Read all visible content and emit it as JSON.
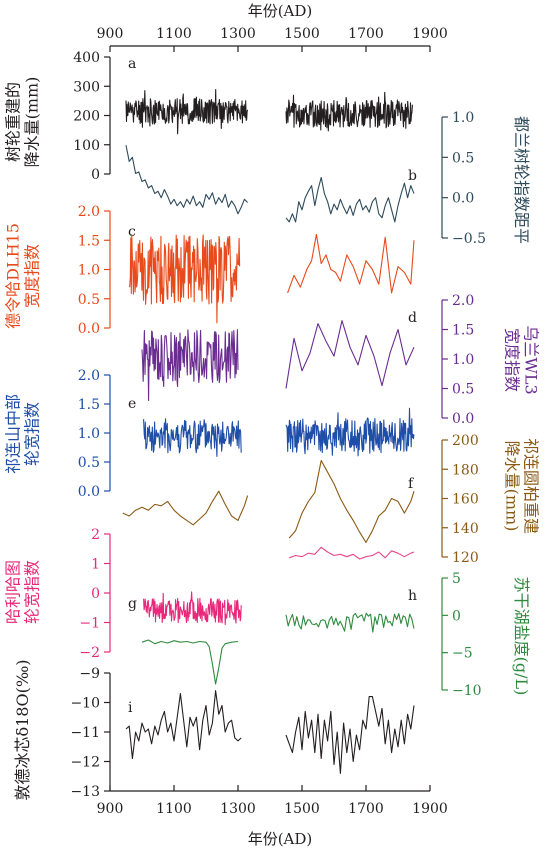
{
  "x_axis": {
    "title": "年份(AD)",
    "range": [
      900,
      1900
    ],
    "ticks": [
      900,
      1100,
      1300,
      1500,
      1700,
      1900
    ],
    "tick_labels": [
      "900",
      "1100",
      "1300",
      "1500",
      "1700",
      "1900"
    ]
  },
  "chart_data": [
    {
      "type": "line",
      "panel_label": "a",
      "ylabel": "树轮重建的 降水量(mm)",
      "ylabel_lines": [
        "树轮重建的",
        "降水量(mm)"
      ],
      "axis_side": "left",
      "color": "#231f20",
      "ylim": [
        0,
        400
      ],
      "yticks": [
        0,
        100,
        200,
        300,
        400
      ],
      "ytick_labels": [
        "0",
        "100",
        "200",
        "300",
        "400"
      ],
      "series": [
        {
          "x": [
            950,
            1330
          ],
          "base": 215,
          "amp": 45,
          "n": 260,
          "seed": 11
        },
        {
          "x": [
            1450,
            1845
          ],
          "base": 205,
          "amp": 48,
          "n": 270,
          "seed": 12
        }
      ]
    },
    {
      "type": "line",
      "panel_label": "b",
      "ylabel": "都兰树轮指数距平",
      "ylabel_lines": [
        "都兰树轮指数距平"
      ],
      "axis_side": "right",
      "color": "#2e4b5b",
      "ylim": [
        -0.5,
        1.0
      ],
      "yticks": [
        -0.5,
        0.0,
        0.5,
        1.0
      ],
      "ytick_labels": [
        "−0.5",
        "0.0",
        "0.5",
        "1.0"
      ],
      "series": [
        {
          "x": [
            950,
            960,
            970,
            980,
            990,
            1000,
            1010,
            1020,
            1030,
            1040,
            1050,
            1060,
            1070,
            1080,
            1090,
            1100,
            1110,
            1120,
            1130,
            1140,
            1150,
            1160,
            1170,
            1180,
            1190,
            1200,
            1210,
            1220,
            1230,
            1240,
            1250,
            1260,
            1270,
            1280,
            1290,
            1300,
            1310,
            1320,
            1330
          ],
          "y": [
            0.65,
            0.45,
            0.5,
            0.3,
            0.32,
            0.2,
            0.22,
            0.12,
            0.15,
            0.05,
            0.08,
            0.0,
            0.1,
            0.02,
            -0.08,
            -0.02,
            -0.1,
            -0.05,
            -0.12,
            -0.02,
            -0.08,
            0.02,
            -0.1,
            -0.05,
            -0.12,
            0.04,
            -0.02,
            0.06,
            -0.08,
            0.0,
            -0.06,
            0.04,
            -0.12,
            -0.04,
            -0.1,
            -0.2,
            -0.12,
            -0.02,
            -0.06
          ]
        },
        {
          "x": [
            1450,
            1460,
            1470,
            1480,
            1490,
            1500,
            1510,
            1520,
            1530,
            1540,
            1550,
            1560,
            1570,
            1580,
            1590,
            1600,
            1610,
            1620,
            1630,
            1640,
            1650,
            1660,
            1670,
            1680,
            1690,
            1700,
            1710,
            1720,
            1730,
            1740,
            1750,
            1760,
            1770,
            1780,
            1790,
            1800,
            1810,
            1820,
            1830,
            1840,
            1850
          ],
          "y": [
            -0.25,
            -0.3,
            -0.2,
            -0.3,
            -0.05,
            -0.15,
            0.0,
            0.08,
            0.15,
            -0.1,
            0.1,
            0.25,
            0.05,
            -0.05,
            -0.2,
            -0.08,
            -0.15,
            -0.02,
            -0.12,
            -0.2,
            -0.1,
            -0.22,
            -0.08,
            -0.02,
            -0.15,
            -0.1,
            -0.18,
            -0.05,
            0.0,
            -0.2,
            -0.25,
            -0.1,
            0.0,
            -0.15,
            -0.3,
            -0.1,
            0.05,
            0.18,
            0.0,
            0.15,
            0.05
          ]
        }
      ]
    },
    {
      "type": "line",
      "panel_label": "c",
      "ylabel": "德令哈DLH15 宽度指数",
      "ylabel_lines": [
        "德令哈DLH15",
        "宽度指数"
      ],
      "axis_side": "left",
      "color": "#e84a1b",
      "ylim": [
        0.0,
        2.0
      ],
      "yticks": [
        0.0,
        0.5,
        1.0,
        1.5,
        2.0
      ],
      "ytick_labels": [
        "0.0",
        "0.5",
        "1.0",
        "1.5",
        "2.0"
      ],
      "series": [
        {
          "x": [
            960,
            1305
          ],
          "base": 1.0,
          "amp": 0.6,
          "n": 210,
          "seed": 21
        },
        {
          "x": [
            1455,
            1475,
            1495,
            1515,
            1530,
            1545,
            1560,
            1575,
            1590,
            1605,
            1620,
            1640,
            1660,
            1680,
            1700,
            1720,
            1740,
            1760,
            1780,
            1800,
            1820,
            1840,
            1850
          ],
          "y": [
            0.6,
            0.9,
            0.7,
            1.0,
            1.15,
            1.6,
            1.1,
            1.25,
            1.0,
            0.95,
            0.8,
            1.25,
            1.05,
            0.75,
            1.15,
            1.0,
            0.75,
            1.55,
            0.6,
            1.05,
            0.95,
            0.75,
            1.5
          ]
        }
      ]
    },
    {
      "type": "line",
      "panel_label": "d",
      "ylabel": "乌兰WL3 宽度指数",
      "ylabel_lines": [
        "乌兰WL3",
        "宽度指数"
      ],
      "axis_side": "right",
      "color": "#6a2c91",
      "ylim": [
        0.0,
        2.0
      ],
      "yticks": [
        0.0,
        0.5,
        1.0,
        1.5,
        2.0
      ],
      "ytick_labels": [
        "0.0",
        "0.5",
        "1.0",
        "1.5",
        "2.0"
      ],
      "series": [
        {
          "x": [
            1000,
            1300
          ],
          "base": 1.05,
          "amp": 0.45,
          "n": 160,
          "seed": 31
        },
        {
          "x": [
            1450,
            1475,
            1500,
            1525,
            1550,
            1575,
            1600,
            1625,
            1650,
            1675,
            1700,
            1725,
            1750,
            1775,
            1800,
            1825,
            1850
          ],
          "y": [
            0.5,
            1.35,
            0.8,
            1.1,
            1.6,
            1.3,
            1.05,
            1.65,
            1.2,
            0.9,
            1.4,
            1.05,
            0.55,
            1.1,
            1.5,
            0.9,
            1.2
          ]
        }
      ]
    },
    {
      "type": "line",
      "panel_label": "e",
      "ylabel": "祁连山中部 轮宽指数",
      "ylabel_lines": [
        "祁连山中部",
        "轮宽指数"
      ],
      "axis_side": "left",
      "color": "#1e4ea8",
      "ylim": [
        0.0,
        2.0
      ],
      "yticks": [
        0.0,
        0.5,
        1.0,
        1.5,
        2.0
      ],
      "ytick_labels": [
        "0.0",
        "0.5",
        "1.0",
        "1.5",
        "2.0"
      ],
      "series": [
        {
          "x": [
            1005,
            1310
          ],
          "base": 0.95,
          "amp": 0.3,
          "n": 170,
          "seed": 41
        },
        {
          "x": [
            1450,
            1850
          ],
          "base": 0.95,
          "amp": 0.3,
          "n": 230,
          "seed": 42
        }
      ]
    },
    {
      "type": "line",
      "panel_label": "f",
      "ylabel": "祁连圆柏重建 降水量(mm)",
      "ylabel_lines": [
        "祁连圆柏重建",
        "降水量(mm)"
      ],
      "axis_side": "right",
      "color": "#8b5a14",
      "ylim": [
        120,
        200
      ],
      "yticks": [
        120,
        140,
        160,
        180,
        200
      ],
      "ytick_labels": [
        "120",
        "140",
        "160",
        "180",
        "200"
      ],
      "series": [
        {
          "x": [
            940,
            960,
            980,
            1000,
            1020,
            1040,
            1060,
            1080,
            1100,
            1120,
            1140,
            1160,
            1180,
            1200,
            1220,
            1240,
            1260,
            1280,
            1300,
            1320,
            1330
          ],
          "y": [
            150,
            148,
            152,
            154,
            152,
            156,
            155,
            158,
            152,
            148,
            145,
            142,
            146,
            150,
            158,
            165,
            156,
            148,
            145,
            155,
            162
          ]
        },
        {
          "x": [
            1460,
            1480,
            1500,
            1520,
            1540,
            1560,
            1580,
            1600,
            1620,
            1640,
            1660,
            1680,
            1700,
            1720,
            1740,
            1760,
            1780,
            1800,
            1820,
            1840,
            1850
          ],
          "y": [
            133,
            138,
            150,
            158,
            164,
            186,
            178,
            170,
            160,
            152,
            145,
            137,
            130,
            138,
            148,
            152,
            160,
            158,
            150,
            158,
            165
          ]
        }
      ]
    },
    {
      "type": "line",
      "panel_label": "",
      "ylabel": "",
      "axis_side": "right-shared",
      "color": "#e8468b",
      "ylim": [
        105,
        165
      ],
      "series": [
        {
          "x": [
            1460,
            1480,
            1500,
            1520,
            1540,
            1560,
            1580,
            1600,
            1620,
            1640,
            1660,
            1680,
            1700,
            1720,
            1740,
            1760,
            1780,
            1800,
            1820,
            1840,
            1850
          ],
          "y": [
            124,
            126,
            125,
            128,
            127,
            133,
            129,
            126,
            127,
            125,
            127,
            123,
            125,
            126,
            129,
            124,
            130,
            128,
            125,
            128,
            129
          ]
        }
      ]
    },
    {
      "type": "line",
      "panel_label": "g",
      "ylabel": "哈利哈图 轮宽指数",
      "ylabel_lines": [
        "哈利哈图",
        "轮宽指数"
      ],
      "axis_side": "left",
      "color": "#e8287a",
      "ylim": [
        -2,
        2
      ],
      "yticks": [
        -2,
        -1,
        0,
        1,
        2
      ],
      "ytick_labels": [
        "−2",
        "−1",
        "0",
        "1",
        "2"
      ],
      "series": [
        {
          "x": [
            1005,
            1310
          ],
          "base": -0.6,
          "amp": 0.42,
          "n": 190,
          "seed": 61
        }
      ]
    },
    {
      "type": "line",
      "panel_label": "h",
      "ylabel": "苏干湖盐度(g/L)",
      "ylabel_lines": [
        "苏干湖盐度(g/L)"
      ],
      "axis_side": "right",
      "color": "#2e8b3e",
      "ylim": [
        -10,
        5
      ],
      "yticks": [
        -10,
        -5,
        0,
        5
      ],
      "ytick_labels": [
        "−10",
        "−5",
        "0",
        "5"
      ],
      "series": [
        {
          "x": [
            1000,
            1020,
            1040,
            1060,
            1080,
            1100,
            1120,
            1140,
            1160,
            1180,
            1200,
            1210,
            1220,
            1230,
            1240,
            1250,
            1260,
            1280,
            1300
          ],
          "y": [
            -3.6,
            -3.3,
            -3.8,
            -3.5,
            -3.7,
            -3.4,
            -3.6,
            -3.5,
            -3.7,
            -3.5,
            -3.6,
            -4.2,
            -6.5,
            -9.2,
            -7.0,
            -4.4,
            -3.8,
            -3.6,
            -3.5
          ]
        },
        {
          "x": [
            1450,
            1850
          ],
          "base": -0.8,
          "amp": 1.1,
          "n": 60,
          "seed": 72
        }
      ]
    },
    {
      "type": "line",
      "panel_label": "i",
      "ylabel": "敦德冰芯δ18O(‰)",
      "ylabel_lines": [
        "敦德冰芯δ18O(‰)"
      ],
      "axis_side": "left",
      "color": "#231f20",
      "ylim": [
        -13,
        -9
      ],
      "yticks": [
        -13,
        -12,
        -11,
        -10,
        -9
      ],
      "ytick_labels": [
        "−13",
        "−12",
        "−11",
        "−10",
        "−9"
      ],
      "series": [
        {
          "x": [
            950,
            960,
            970,
            980,
            990,
            1000,
            1010,
            1020,
            1030,
            1040,
            1050,
            1060,
            1070,
            1080,
            1090,
            1100,
            1110,
            1120,
            1130,
            1140,
            1150,
            1160,
            1170,
            1180,
            1190,
            1200,
            1210,
            1220,
            1230,
            1240,
            1250,
            1260,
            1270,
            1280,
            1290,
            1300,
            1310
          ],
          "y": [
            -10.9,
            -10.8,
            -11.9,
            -11.0,
            -11.3,
            -10.7,
            -11.0,
            -10.9,
            -11.4,
            -10.8,
            -11.1,
            -10.6,
            -10.3,
            -11.0,
            -10.7,
            -11.3,
            -10.5,
            -9.7,
            -10.6,
            -11.5,
            -10.5,
            -10.8,
            -10.5,
            -11.6,
            -10.6,
            -10.1,
            -11.1,
            -10.7,
            -9.6,
            -10.4,
            -10.1,
            -11.0,
            -10.7,
            -10.6,
            -11.2,
            -11.3,
            -11.2
          ]
        },
        {
          "x": [
            1450,
            1460,
            1470,
            1480,
            1490,
            1500,
            1510,
            1520,
            1530,
            1540,
            1550,
            1560,
            1570,
            1580,
            1590,
            1600,
            1610,
            1620,
            1630,
            1640,
            1650,
            1660,
            1670,
            1680,
            1690,
            1700,
            1710,
            1720,
            1730,
            1740,
            1750,
            1760,
            1770,
            1780,
            1790,
            1800,
            1810,
            1820,
            1830,
            1840,
            1850
          ],
          "y": [
            -11.1,
            -11.4,
            -11.7,
            -11.0,
            -10.5,
            -11.6,
            -10.3,
            -11.2,
            -10.6,
            -11.7,
            -10.4,
            -11.9,
            -10.6,
            -11.3,
            -10.3,
            -12.1,
            -11.0,
            -12.4,
            -10.7,
            -11.7,
            -10.9,
            -12.0,
            -11.1,
            -11.6,
            -10.6,
            -10.9,
            -9.8,
            -9.8,
            -10.3,
            -10.8,
            -10.2,
            -11.4,
            -10.6,
            -11.7,
            -10.9,
            -11.5,
            -10.6,
            -11.4,
            -10.4,
            -10.9,
            -10.1
          ]
        }
      ]
    }
  ]
}
